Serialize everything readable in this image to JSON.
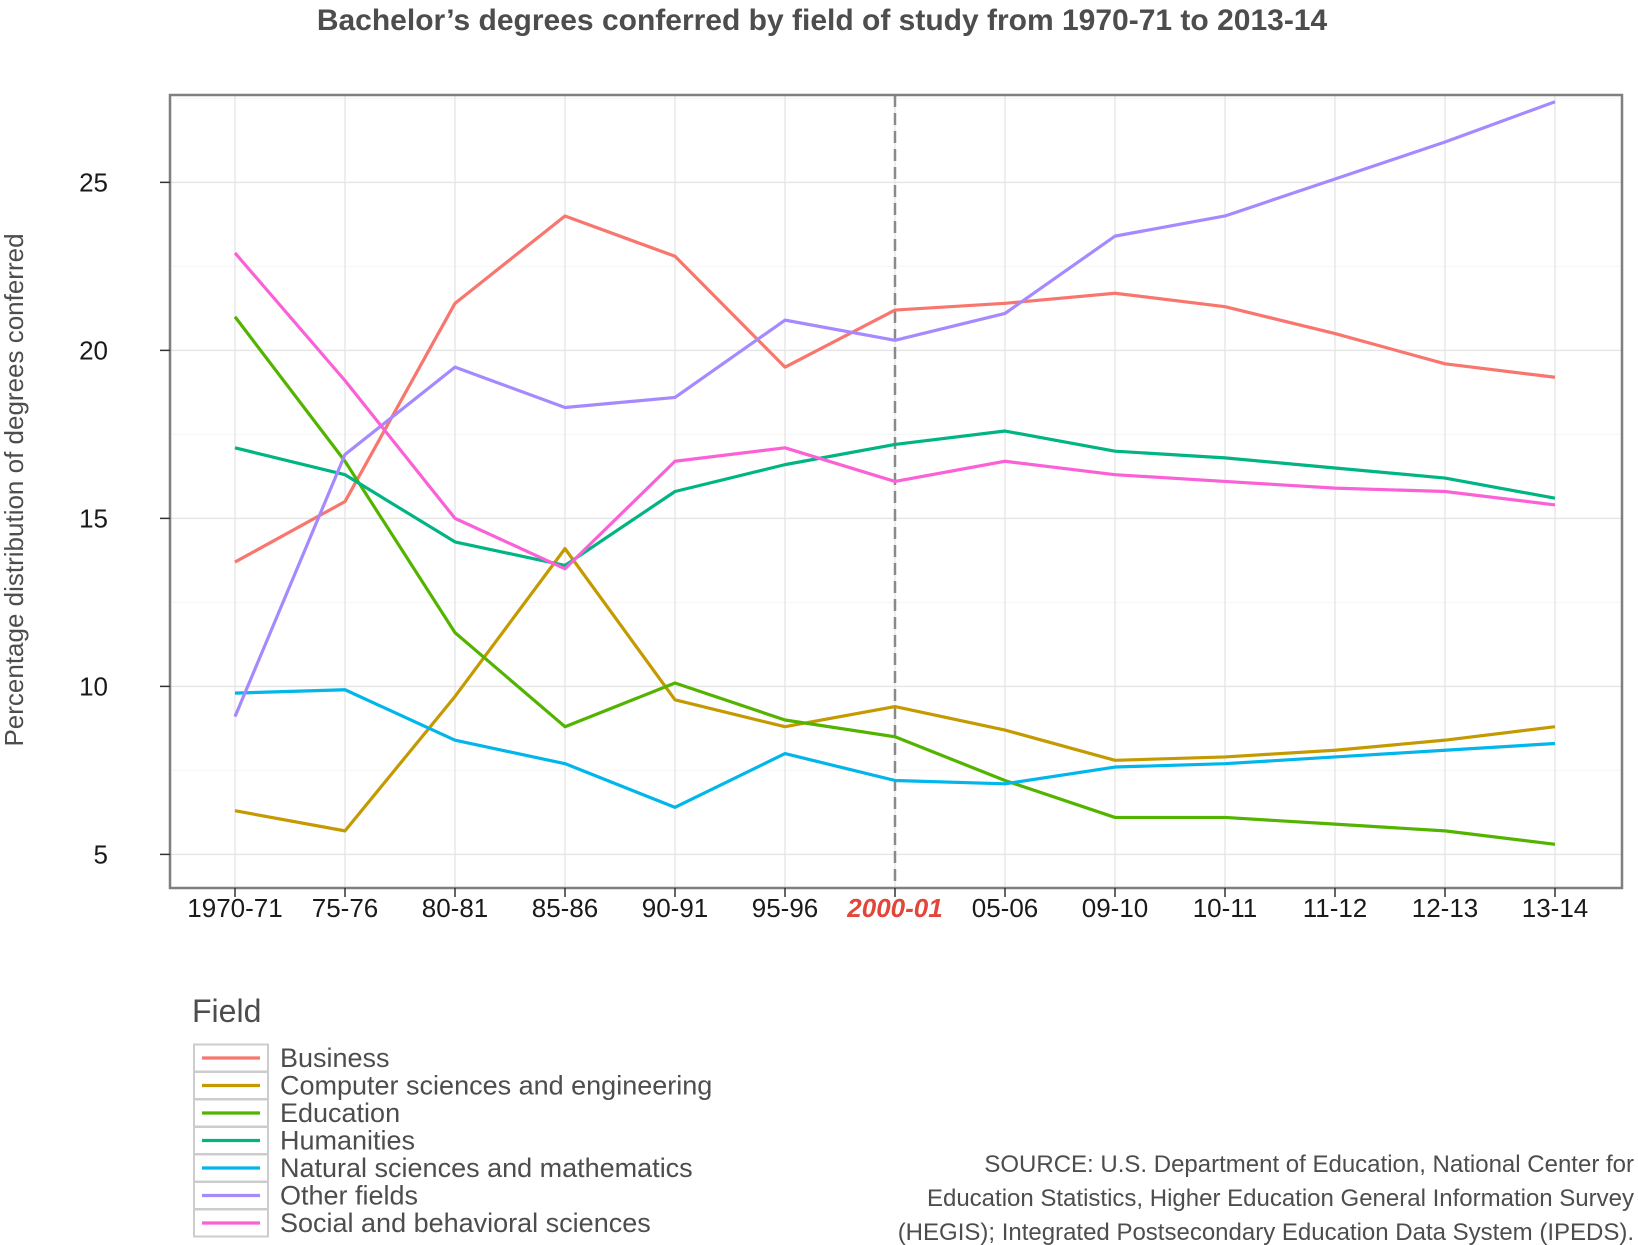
{
  "chart_data": {
    "type": "line",
    "title": "Bachelor’s degrees conferred by field of study from 1970-71 to 2013-14",
    "xlabel": "",
    "ylabel": "Percentage distribution of degrees conferred",
    "categories": [
      "1970-71",
      "75-76",
      "80-81",
      "85-86",
      "90-91",
      "95-96",
      "2000-01",
      "05-06",
      "09-10",
      "10-11",
      "11-12",
      "12-13",
      "13-14"
    ],
    "highlight_category": "2000-01",
    "ylim": [
      4,
      27.6
    ],
    "yticks": [
      5,
      10,
      15,
      20,
      25
    ],
    "grid": true,
    "legend_title": "Field",
    "legend_position": "bottom-left",
    "series": [
      {
        "name": "Business",
        "color": "#f8766d",
        "values": [
          13.7,
          15.5,
          21.4,
          24.0,
          22.8,
          19.5,
          21.2,
          21.4,
          21.7,
          21.3,
          20.5,
          19.6,
          19.2
        ]
      },
      {
        "name": "Computer sciences and engineering",
        "color": "#c49a00",
        "values": [
          6.3,
          5.7,
          9.7,
          14.1,
          9.6,
          8.8,
          9.4,
          8.7,
          7.8,
          7.9,
          8.1,
          8.4,
          8.8
        ]
      },
      {
        "name": "Education",
        "color": "#53b400",
        "values": [
          21.0,
          16.7,
          11.6,
          8.8,
          10.1,
          9.0,
          8.5,
          7.2,
          6.1,
          6.1,
          5.9,
          5.7,
          5.3
        ]
      },
      {
        "name": "Humanities",
        "color": "#00b483",
        "values": [
          17.1,
          16.3,
          14.3,
          13.6,
          15.8,
          16.6,
          17.2,
          17.6,
          17.0,
          16.8,
          16.5,
          16.2,
          15.6
        ]
      },
      {
        "name": "Natural sciences and mathematics",
        "color": "#00b6eb",
        "values": [
          9.8,
          9.9,
          8.4,
          7.7,
          6.4,
          8.0,
          7.2,
          7.1,
          7.6,
          7.7,
          7.9,
          8.1,
          8.3
        ]
      },
      {
        "name": "Other fields",
        "color": "#a58aff",
        "values": [
          9.1,
          16.9,
          19.5,
          18.3,
          18.6,
          20.9,
          20.3,
          21.1,
          23.4,
          24.0,
          25.1,
          26.2,
          27.4
        ]
      },
      {
        "name": "Social and behavioral sciences",
        "color": "#fb61d7",
        "values": [
          22.9,
          19.1,
          15.0,
          13.5,
          16.7,
          17.1,
          16.1,
          16.7,
          16.3,
          16.1,
          15.9,
          15.8,
          15.4
        ]
      }
    ],
    "source_lines": [
      "SOURCE: U.S. Department of Education, National Center for",
      "Education Statistics, Higher Education General Information Survey",
      "(HEGIS); Integrated Postsecondary Education Data System (IPEDS)."
    ]
  }
}
